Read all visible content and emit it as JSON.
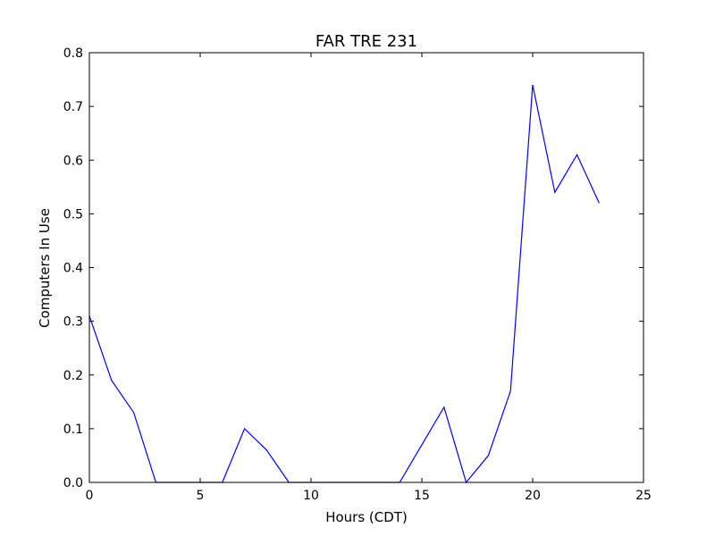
{
  "chart_data": {
    "type": "line",
    "title": "FAR TRE 231",
    "xlabel": "Hours (CDT)",
    "ylabel": "Computers In Use",
    "xlim": [
      0,
      25
    ],
    "ylim": [
      0,
      0.8
    ],
    "xticks": [
      0,
      5,
      10,
      15,
      20,
      25
    ],
    "yticks": [
      0.0,
      0.1,
      0.2,
      0.3,
      0.4,
      0.5,
      0.6,
      0.7,
      0.8
    ],
    "xtick_labels": [
      "0",
      "5",
      "10",
      "15",
      "20",
      "25"
    ],
    "ytick_labels": [
      "0.0",
      "0.1",
      "0.2",
      "0.3",
      "0.4",
      "0.5",
      "0.6",
      "0.7",
      "0.8"
    ],
    "grid": false,
    "legend": "none",
    "series": [
      {
        "color": "#0000ff",
        "x": [
          0,
          1,
          2,
          3,
          4,
          5,
          6,
          7,
          8,
          9,
          10,
          11,
          12,
          13,
          14,
          15,
          16,
          17,
          18,
          19,
          20,
          21,
          22,
          23
        ],
        "y": [
          0.31,
          0.19,
          0.13,
          0.0,
          0.0,
          0.0,
          0.0,
          0.1,
          0.06,
          0.0,
          0.0,
          0.0,
          0.0,
          0.0,
          0.0,
          0.07,
          0.14,
          0.0,
          0.05,
          0.17,
          0.74,
          0.54,
          0.61,
          0.52
        ]
      }
    ]
  }
}
